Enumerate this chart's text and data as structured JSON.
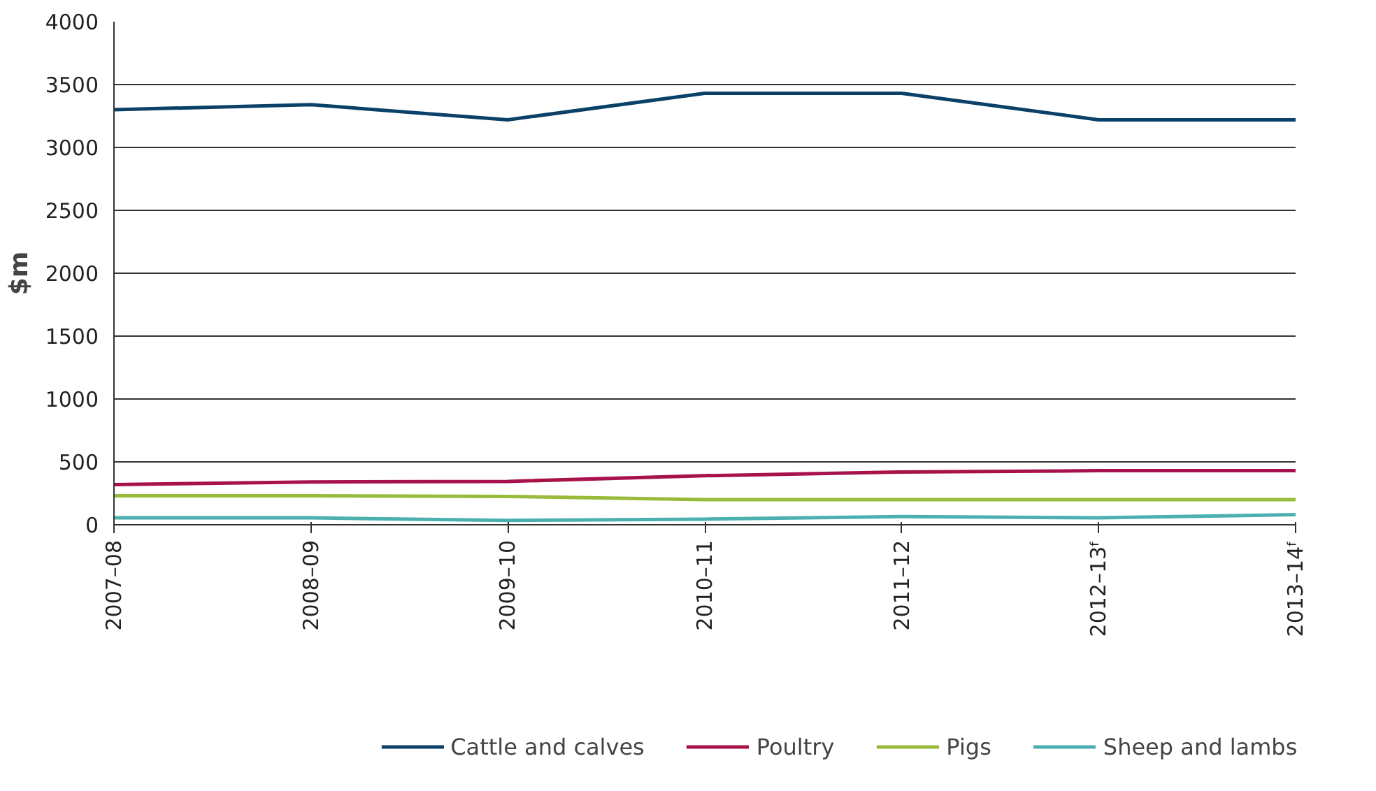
{
  "chart_data": {
    "type": "line",
    "ylabel": "$m",
    "categories": [
      "2007–08",
      "2008–09",
      "2009–10",
      "2010–11",
      "2011–12",
      "2012–13ᶠ",
      "2013–14ᶠ"
    ],
    "ylim": [
      0,
      4000
    ],
    "yticks": [
      0,
      500,
      1000,
      1500,
      2000,
      2500,
      3000,
      3500,
      4000
    ],
    "grid": "y",
    "legend": "bottom",
    "marker": "none",
    "line_style": "solid",
    "series": [
      {
        "name": "Cattle and calves",
        "color": "#0b4168",
        "values": [
          3300,
          3340,
          3220,
          3430,
          3430,
          3220,
          3220
        ]
      },
      {
        "name": "Poultry",
        "color": "#a8124a",
        "values": [
          320,
          340,
          345,
          390,
          420,
          430,
          430
        ]
      },
      {
        "name": "Pigs",
        "color": "#99bb3c",
        "values": [
          230,
          230,
          225,
          200,
          200,
          200,
          200
        ]
      },
      {
        "name": "Sheep and lambs",
        "color": "#4db0b0",
        "values": [
          55,
          55,
          35,
          45,
          65,
          55,
          80
        ]
      }
    ]
  }
}
